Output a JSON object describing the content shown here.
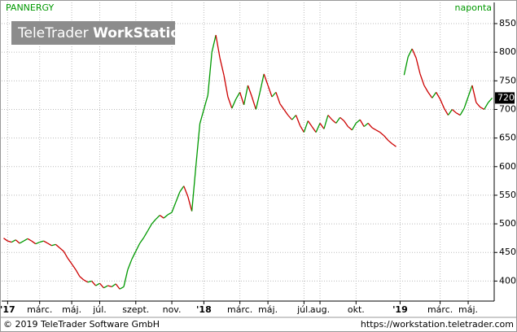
{
  "chart_data": {
    "type": "line",
    "title": "PANNERGY",
    "subtitle": "naponta",
    "watermark": [
      "TeleTrader",
      "WorkStation"
    ],
    "footer_left": "© 2019 TeleTrader Software GmbH",
    "footer_right": "https://workstation.teletrader.com",
    "up_color": "#009900",
    "down_color": "#cc0000",
    "grid": true,
    "ylim": [
      365,
      887
    ],
    "yticks": [
      400,
      450,
      500,
      550,
      600,
      650,
      700,
      750,
      800,
      850
    ],
    "categories": [
      null,
      "'17",
      null,
      null,
      null,
      null,
      null,
      null,
      null,
      "márc.",
      null,
      null,
      null,
      null,
      null,
      null,
      null,
      "máj.",
      null,
      null,
      null,
      null,
      null,
      null,
      "júl.",
      null,
      null,
      null,
      null,
      null,
      null,
      null,
      null,
      "szept.",
      null,
      null,
      null,
      null,
      null,
      null,
      null,
      null,
      "nov.",
      null,
      null,
      null,
      null,
      null,
      null,
      null,
      "'18",
      null,
      null,
      null,
      null,
      null,
      null,
      null,
      null,
      "márc.",
      null,
      null,
      null,
      null,
      null,
      null,
      "máj.",
      null,
      null,
      null,
      null,
      null,
      null,
      null,
      null,
      "júl.",
      null,
      null,
      null,
      "aug.",
      null,
      null,
      null,
      null,
      null,
      null,
      null,
      null,
      "okt.",
      null,
      null,
      null,
      null,
      null,
      null,
      null,
      null,
      null,
      null,
      "'19",
      null,
      null,
      null,
      null,
      null,
      null,
      null,
      null,
      null,
      "márc.",
      null,
      null,
      null,
      null,
      null,
      null,
      "máj.",
      null,
      null,
      null,
      null,
      null,
      null
    ],
    "series": [
      {
        "name": "PANNERGY",
        "values": [
          475,
          470,
          468,
          472,
          466,
          470,
          474,
          470,
          465,
          468,
          470,
          466,
          462,
          464,
          458,
          452,
          440,
          430,
          420,
          408,
          402,
          398,
          400,
          392,
          396,
          388,
          392,
          390,
          395,
          386,
          390,
          420,
          438,
          452,
          466,
          476,
          488,
          500,
          508,
          515,
          510,
          516,
          520,
          538,
          556,
          566,
          548,
          522,
          600,
          675,
          700,
          725,
          800,
          830,
          790,
          760,
          722,
          702,
          718,
          730,
          708,
          742,
          722,
          700,
          730,
          762,
          742,
          722,
          730,
          710,
          700,
          690,
          682,
          690,
          672,
          660,
          680,
          670,
          660,
          676,
          666,
          690,
          682,
          676,
          686,
          680,
          670,
          664,
          676,
          682,
          670,
          676,
          668,
          664,
          660,
          654,
          646,
          640,
          635,
          null,
          760,
          792,
          806,
          790,
          762,
          742,
          730,
          720,
          730,
          718,
          702,
          690,
          700,
          694,
          690,
          702,
          722,
          742,
          712,
          704,
          700,
          712,
          720
        ]
      }
    ]
  }
}
